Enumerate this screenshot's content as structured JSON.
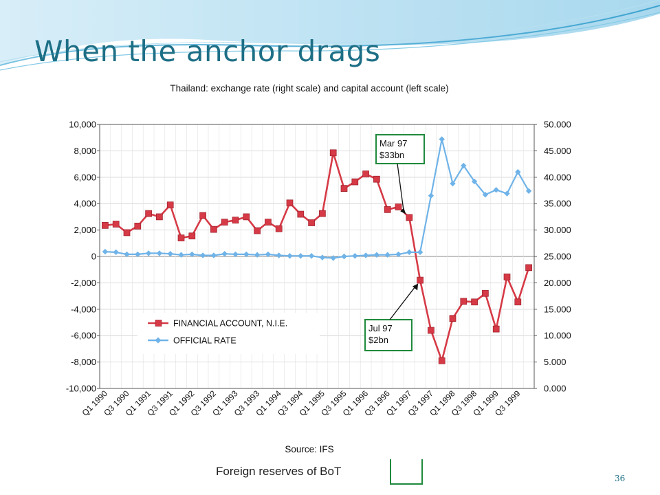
{
  "slide": {
    "title": "When the anchor drags",
    "footer_text": "Foreign reserves of BoT",
    "page_number": "36",
    "accent_color": "#1d6f86",
    "box_color": "#1f8a3c"
  },
  "chart_data": {
    "type": "line",
    "title": "Thailand: exchange rate (right scale) and capital account (left scale)",
    "source": "Source: IFS",
    "x": [
      "Q1 1990",
      "Q2 1990",
      "Q3 1990",
      "Q4 1990",
      "Q1 1991",
      "Q2 1991",
      "Q3 1991",
      "Q4 1991",
      "Q1 1992",
      "Q2 1992",
      "Q3 1992",
      "Q4 1992",
      "Q1 1993",
      "Q2 1993",
      "Q3 1993",
      "Q4 1993",
      "Q1 1994",
      "Q2 1994",
      "Q3 1994",
      "Q4 1994",
      "Q1 1995",
      "Q2 1995",
      "Q3 1995",
      "Q4 1995",
      "Q1 1996",
      "Q2 1996",
      "Q3 1996",
      "Q4 1996",
      "Q1 1997",
      "Q2 1997",
      "Q3 1997",
      "Q4 1997",
      "Q1 1998",
      "Q2 1998",
      "Q3 1998",
      "Q4 1998",
      "Q1 1999",
      "Q2 1999",
      "Q3 1999",
      "Q4 1999"
    ],
    "x_tick_labels": [
      "Q1 1990",
      "Q3 1990",
      "Q1 1991",
      "Q3 1991",
      "Q1 1992",
      "Q3 1992",
      "Q1 1993",
      "Q3 1993",
      "Q1 1994",
      "Q3 1994",
      "Q1 1995",
      "Q3 1995",
      "Q1 1996",
      "Q3 1996",
      "Q1 1997",
      "Q3 1997",
      "Q1 1998",
      "Q3 1998",
      "Q1 1999",
      "Q3 1999"
    ],
    "left_axis": {
      "ylim": [
        -10000,
        10000
      ],
      "ticks": [
        10000,
        8000,
        6000,
        4000,
        2000,
        0,
        -2000,
        -4000,
        -6000,
        -8000,
        -10000
      ],
      "tick_labels": [
        "10,000",
        "8,000",
        "6,000",
        "4,000",
        "2,000",
        "0",
        "-2,000",
        "-4,000",
        "-6,000",
        "-8,000",
        "-10,000"
      ]
    },
    "right_axis": {
      "ylim": [
        0,
        50
      ],
      "ticks": [
        50,
        45,
        40,
        35,
        30,
        25,
        20,
        15,
        10,
        5,
        0
      ],
      "tick_labels": [
        "50.000",
        "45.000",
        "40.000",
        "35.000",
        "30.000",
        "25.000",
        "20.000",
        "15.000",
        "10.000",
        "5.000",
        "0.000"
      ]
    },
    "grid": true,
    "series": [
      {
        "name": "FINANCIAL ACCOUNT, N.I.E.",
        "axis": "left",
        "color": "#d63a46",
        "marker": "square",
        "values": [
          2350,
          2450,
          1800,
          2300,
          3250,
          3000,
          3900,
          1400,
          1550,
          3100,
          2050,
          2600,
          2750,
          3000,
          1950,
          2600,
          2100,
          4050,
          3200,
          2550,
          3250,
          7850,
          5150,
          5650,
          6250,
          5850,
          3550,
          3750,
          2950,
          -1800,
          -5600,
          -7900,
          -4700,
          -3400,
          -3450,
          -2800,
          -5500,
          -1550,
          -3450,
          -850
        ]
      },
      {
        "name": "OFFICIAL RATE",
        "axis": "right",
        "color": "#6fb3e8",
        "marker": "diamond",
        "values": [
          25.9,
          25.8,
          25.4,
          25.4,
          25.6,
          25.6,
          25.5,
          25.3,
          25.4,
          25.2,
          25.2,
          25.5,
          25.4,
          25.4,
          25.3,
          25.4,
          25.2,
          25.1,
          25.1,
          25.1,
          24.8,
          24.7,
          25.0,
          25.1,
          25.2,
          25.3,
          25.3,
          25.4,
          25.8,
          25.8,
          36.5,
          47.2,
          38.8,
          42.2,
          39.2,
          36.7,
          37.6,
          36.9,
          41.0,
          37.4
        ]
      }
    ],
    "annotations": [
      {
        "lines": [
          "Mar 97",
          "$33bn"
        ],
        "target": "Q1 1997"
      },
      {
        "lines": [
          "Jul 97",
          "$2bn"
        ],
        "target": "Q2 1997"
      }
    ],
    "legend": "bottom-left, inside plot"
  }
}
